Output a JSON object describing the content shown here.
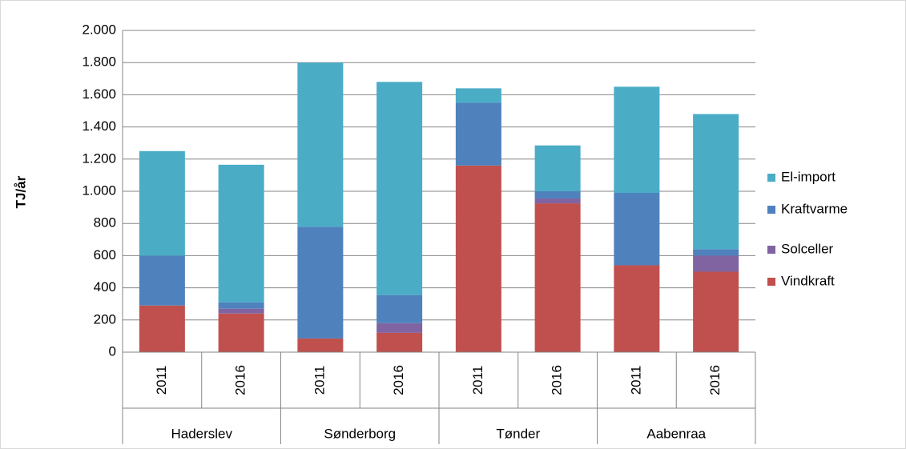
{
  "chart_data": {
    "type": "stacked_bar",
    "ylabel": "TJ/år",
    "categories": [
      "2011",
      "2016",
      "2011",
      "2016",
      "2011",
      "2016",
      "2011",
      "2016"
    ],
    "groups": [
      "Haderslev",
      "Sønderborg",
      "Tønder",
      "Aabenraa"
    ],
    "series": [
      {
        "name": "Vindkraft",
        "color": "#c0504d",
        "values": [
          290,
          240,
          85,
          120,
          1160,
          925,
          540,
          500
        ]
      },
      {
        "name": "Solceller",
        "color": "#8064a2",
        "values": [
          0,
          30,
          0,
          60,
          0,
          30,
          0,
          100
        ]
      },
      {
        "name": "Kraftvarme",
        "color": "#4f81bd",
        "values": [
          310,
          40,
          695,
          175,
          390,
          45,
          450,
          40
        ]
      },
      {
        "name": "El-import",
        "color": "#4bacc6",
        "values": [
          650,
          855,
          1020,
          1325,
          90,
          285,
          660,
          840
        ]
      }
    ],
    "ylim": [
      0,
      2000
    ],
    "yticks": [
      0,
      200,
      400,
      600,
      800,
      {
        "value": 1000,
        "label": "1.000"
      },
      {
        "value": 1200,
        "label": "1.200"
      },
      {
        "value": 1400,
        "label": "1.400"
      },
      {
        "value": 1600,
        "label": "1.600"
      },
      {
        "value": 1800,
        "label": "1.800"
      },
      {
        "value": 2000,
        "label": "2.000"
      }
    ],
    "grid": true,
    "legend": "right"
  }
}
